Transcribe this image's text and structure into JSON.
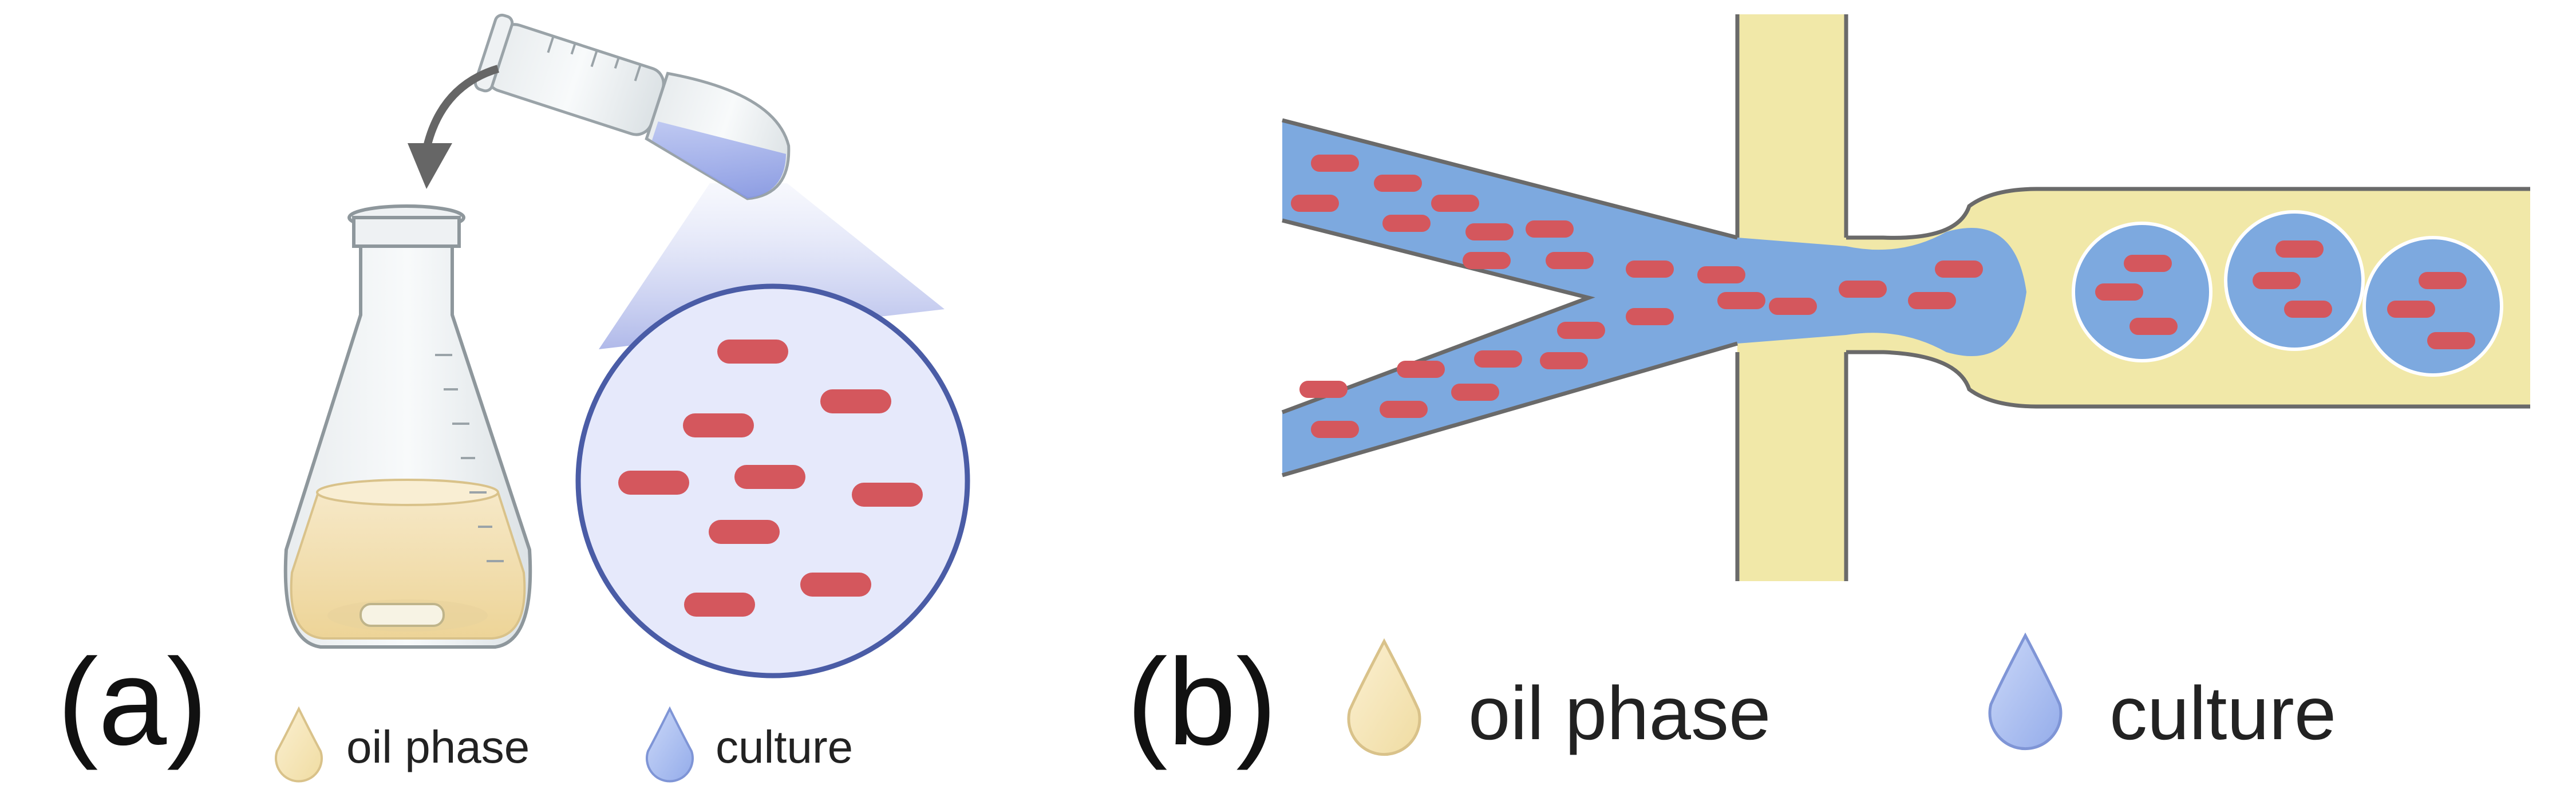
{
  "panel_a": {
    "label": "(a)",
    "legend": [
      {
        "text": "oil phase",
        "icon": "oil-droplet-icon",
        "color": "#F4E3B0"
      },
      {
        "text": "culture",
        "icon": "culture-droplet-icon",
        "color": "#A9BEF0"
      }
    ]
  },
  "panel_b": {
    "label": "(b)",
    "legend": [
      {
        "text": "oil phase",
        "icon": "oil-droplet-icon",
        "color": "#F4E3B0"
      },
      {
        "text": "culture",
        "icon": "culture-droplet-icon",
        "color": "#A9BEF0"
      }
    ]
  },
  "colors": {
    "oil": "#F1E8A8",
    "culture": "#7DA9DF",
    "bacteria": "#D4575D",
    "outline": "#6A6A6A",
    "magnifier_fill": "#E6E9FB",
    "magnifier_stroke": "#4A5CA6",
    "flask_liquid": "#F2DDA8"
  }
}
